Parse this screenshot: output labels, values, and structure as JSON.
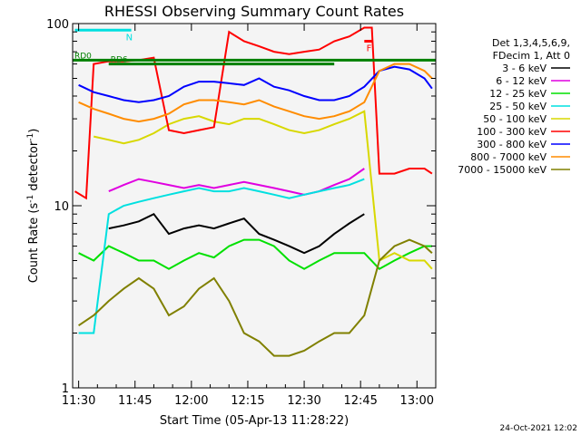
{
  "chart_data": {
    "type": "line",
    "title": "RHESSI Observing Summary Count Rates",
    "xlabel": "Start Time (05-Apr-13 11:28:22)",
    "ylabel_main": "Count Rate (s",
    "ylabel_sup1": "-1",
    "ylabel_mid": " detector",
    "ylabel_sup2": "-1",
    "ylabel_end": ")",
    "yscale": "log",
    "ylim": [
      1,
      100
    ],
    "xlim_minutes": [
      -1.6,
      95
    ],
    "x_ticks": [
      {
        "m": 0,
        "label": "11:30"
      },
      {
        "m": 15,
        "label": "11:45"
      },
      {
        "m": 30,
        "label": "12:00"
      },
      {
        "m": 45,
        "label": "12:15"
      },
      {
        "m": 60,
        "label": "12:30"
      },
      {
        "m": 75,
        "label": "12:45"
      },
      {
        "m": 90,
        "label": "13:00"
      }
    ],
    "y_ticks": [
      {
        "v": 1,
        "label": "1"
      },
      {
        "v": 10,
        "label": "10"
      },
      {
        "v": 100,
        "label": "100"
      }
    ],
    "legend_header": [
      "Det 1,3,4,5,6,9,",
      "FDecim 1, Att 0"
    ],
    "series": [
      {
        "name": "3 - 6 keV",
        "color": "#000000",
        "x": [
          8,
          12,
          16,
          20,
          24,
          28,
          32,
          36,
          40,
          44,
          48,
          52,
          56,
          60,
          64,
          68,
          72,
          76
        ],
        "y": [
          7.5,
          7.8,
          8.2,
          9,
          7,
          7.5,
          7.8,
          7.5,
          8,
          8.5,
          7,
          6.5,
          6,
          5.5,
          6,
          7,
          8,
          9
        ]
      },
      {
        "name": "6 - 12 keV",
        "color": "#e000e0",
        "x": [
          8,
          12,
          16,
          20,
          24,
          28,
          32,
          36,
          40,
          44,
          48,
          52,
          56,
          60,
          64,
          68,
          72,
          76
        ],
        "y": [
          12,
          13,
          14,
          13.5,
          13,
          12.5,
          13,
          12.5,
          13,
          13.5,
          13,
          12.5,
          12,
          11.5,
          12,
          13,
          14,
          16
        ]
      },
      {
        "name": "12 - 25 keV",
        "color": "#00e000",
        "x": [
          0,
          4,
          8,
          12,
          16,
          20,
          24,
          28,
          32,
          36,
          40,
          44,
          48,
          52,
          56,
          60,
          64,
          68,
          72,
          76,
          80,
          84,
          88,
          92,
          94
        ],
        "y": [
          5.5,
          5,
          6,
          5.5,
          5,
          5,
          4.5,
          5,
          5.5,
          5.2,
          6,
          6.5,
          6.5,
          6,
          5,
          4.5,
          5,
          5.5,
          5.5,
          5.5,
          4.5,
          5,
          5.5,
          6,
          6
        ]
      },
      {
        "name": "25 - 50 keV",
        "color": "#00e0e0",
        "x": [
          0,
          4,
          8,
          12,
          16,
          20,
          24,
          28,
          32,
          36,
          40,
          44,
          48,
          52,
          56,
          60,
          64,
          68,
          72,
          76
        ],
        "y": [
          2,
          2,
          9,
          10,
          10.5,
          11,
          11.5,
          12,
          12.5,
          12,
          12,
          12.5,
          12,
          11.5,
          11,
          11.5,
          12,
          12.5,
          13,
          14
        ]
      },
      {
        "name": "50 - 100 keV",
        "color": "#d8d800",
        "x": [
          4,
          8,
          12,
          16,
          20,
          24,
          28,
          32,
          36,
          40,
          44,
          48,
          52,
          56,
          60,
          64,
          68,
          72,
          76,
          80,
          84,
          88,
          92,
          94
        ],
        "y": [
          24,
          23,
          22,
          23,
          25,
          28,
          30,
          31,
          29,
          28,
          30,
          30,
          28,
          26,
          25,
          26,
          28,
          30,
          33,
          5,
          5.5,
          5,
          5,
          4.5
        ]
      },
      {
        "name": "100 - 300 keV",
        "color": "#ff0000",
        "x": [
          -1,
          2,
          4,
          8,
          12,
          16,
          20,
          24,
          28,
          32,
          36,
          40,
          44,
          48,
          52,
          56,
          60,
          64,
          68,
          72,
          76,
          78,
          80,
          84,
          88,
          92,
          94
        ],
        "y": [
          12,
          11,
          60,
          62,
          62,
          63,
          65,
          26,
          25,
          26,
          27,
          90,
          80,
          75,
          70,
          68,
          70,
          72,
          80,
          85,
          95,
          95,
          15,
          15,
          16,
          16,
          15
        ]
      },
      {
        "name": "300 - 800 keV",
        "color": "#0000ff",
        "x": [
          0,
          4,
          8,
          12,
          16,
          20,
          24,
          28,
          32,
          36,
          40,
          44,
          48,
          52,
          56,
          60,
          64,
          68,
          72,
          76,
          80,
          84,
          88,
          92,
          94
        ],
        "y": [
          46,
          42,
          40,
          38,
          37,
          38,
          40,
          45,
          48,
          48,
          47,
          46,
          50,
          45,
          43,
          40,
          38,
          38,
          40,
          45,
          55,
          58,
          56,
          50,
          44
        ]
      },
      {
        "name": "800 - 7000 keV",
        "color": "#ff8c00",
        "x": [
          0,
          4,
          8,
          12,
          16,
          20,
          24,
          28,
          32,
          36,
          40,
          44,
          48,
          52,
          56,
          60,
          64,
          68,
          72,
          76,
          80,
          84,
          88,
          92,
          94
        ],
        "y": [
          37,
          34,
          32,
          30,
          29,
          30,
          32,
          36,
          38,
          38,
          37,
          36,
          38,
          35,
          33,
          31,
          30,
          31,
          33,
          37,
          55,
          60,
          60,
          55,
          50
        ]
      },
      {
        "name": "7000 - 15000 keV",
        "color": "#808000",
        "x": [
          0,
          4,
          8,
          12,
          16,
          20,
          24,
          28,
          32,
          36,
          40,
          44,
          48,
          52,
          56,
          60,
          64,
          68,
          72,
          76,
          80,
          84,
          88,
          92,
          94
        ],
        "y": [
          2.2,
          2.5,
          3,
          3.5,
          4,
          3.5,
          2.5,
          2.8,
          3.5,
          4,
          3,
          2,
          1.8,
          1.5,
          1.5,
          1.6,
          1.8,
          2,
          2,
          2.5,
          5,
          6,
          6.5,
          6,
          5.5
        ]
      }
    ],
    "flags": [
      {
        "name": "RD0",
        "label": "RD0",
        "color": "#008000",
        "y": 63,
        "x_from": -1.6,
        "x_to": 95
      },
      {
        "name": "RD6",
        "label": "RD6",
        "color": "#008000",
        "y": 60,
        "x_from": 8,
        "x_to": 68
      }
    ],
    "state_markers": [
      {
        "name": "N",
        "label": "N",
        "color": "#00e0e0",
        "y": 92,
        "x_from": -1,
        "x_to": 14
      },
      {
        "name": "F",
        "label": "F",
        "color": "#ff0000",
        "y": 80,
        "x_from": 76,
        "x_to": 78
      }
    ],
    "timestamp": "24-Oct-2021 12:02"
  }
}
